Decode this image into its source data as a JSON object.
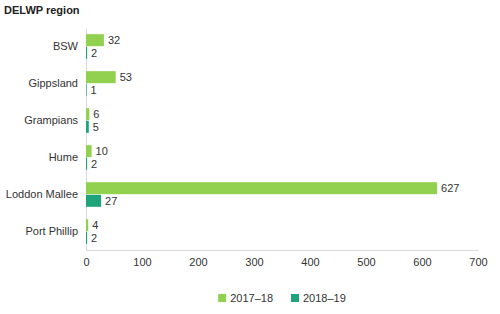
{
  "chart_data": {
    "type": "bar",
    "orientation": "horizontal",
    "ylabel": "DELWP region",
    "categories": [
      "BSW",
      "Gippsland",
      "Grampians",
      "Hume",
      "Loddon Mallee",
      "Port Phillip"
    ],
    "series": [
      {
        "name": "2017–18",
        "color": "#92d050",
        "values": [
          32,
          53,
          6,
          10,
          627,
          4
        ]
      },
      {
        "name": "2018–19",
        "color": "#1ea37a",
        "values": [
          2,
          1,
          5,
          2,
          27,
          2
        ]
      }
    ],
    "xlim": [
      0,
      700
    ],
    "xticks": [
      0,
      100,
      200,
      300,
      400,
      500,
      600,
      700
    ],
    "grid": false,
    "data_labels": true,
    "legend": "bottom"
  }
}
